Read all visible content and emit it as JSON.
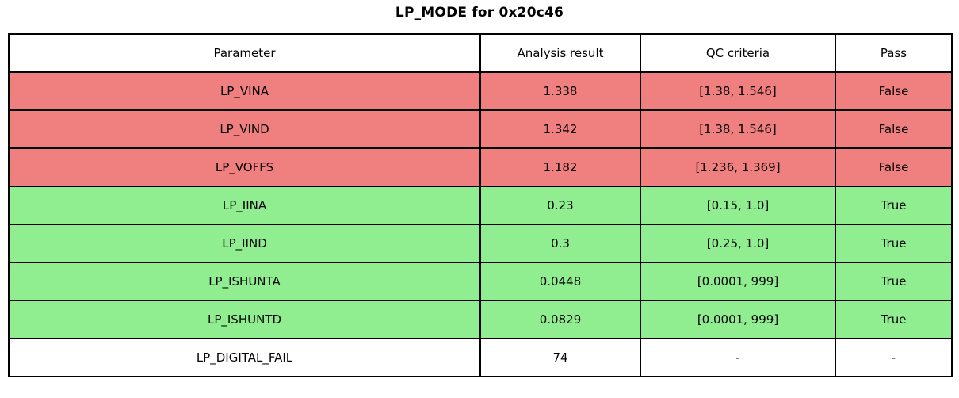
{
  "title": "LP_MODE for 0x20c46",
  "colors": {
    "fail": "#f08080",
    "pass": "#90ee90",
    "none": "#ffffff",
    "border": "#000000",
    "text": "#000000"
  },
  "chart_data": {
    "type": "table",
    "title": "LP_MODE for 0x20c46",
    "columns": [
      "Parameter",
      "Analysis result",
      "QC criteria",
      "Pass"
    ],
    "rows": [
      {
        "parameter": "LP_VINA",
        "result": "1.338",
        "criteria": "[1.38, 1.546]",
        "pass": "False",
        "status": "fail"
      },
      {
        "parameter": "LP_VIND",
        "result": "1.342",
        "criteria": "[1.38, 1.546]",
        "pass": "False",
        "status": "fail"
      },
      {
        "parameter": "LP_VOFFS",
        "result": "1.182",
        "criteria": "[1.236, 1.369]",
        "pass": "False",
        "status": "fail"
      },
      {
        "parameter": "LP_IINA",
        "result": "0.23",
        "criteria": "[0.15, 1.0]",
        "pass": "True",
        "status": "pass"
      },
      {
        "parameter": "LP_IIND",
        "result": "0.3",
        "criteria": "[0.25, 1.0]",
        "pass": "True",
        "status": "pass"
      },
      {
        "parameter": "LP_ISHUNTA",
        "result": "0.0448",
        "criteria": "[0.0001, 999]",
        "pass": "True",
        "status": "pass"
      },
      {
        "parameter": "LP_ISHUNTD",
        "result": "0.0829",
        "criteria": "[0.0001, 999]",
        "pass": "True",
        "status": "pass"
      },
      {
        "parameter": "LP_DIGITAL_FAIL",
        "result": "74",
        "criteria": "-",
        "pass": "-",
        "status": "none"
      }
    ]
  }
}
